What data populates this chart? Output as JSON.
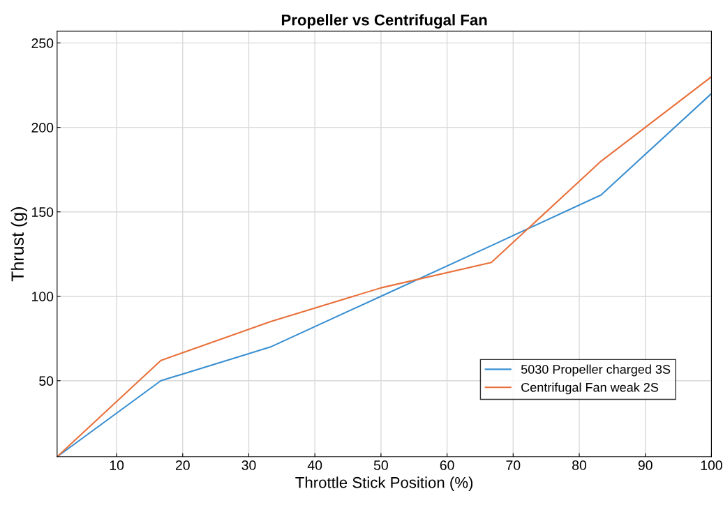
{
  "chart_data": {
    "type": "line",
    "title": "Propeller vs Centrifugal Fan",
    "xlabel": "Throttle Stick Position (%)",
    "ylabel": "Thrust (g)",
    "x": [
      1,
      16.7,
      33.3,
      50,
      66.7,
      83.3,
      100
    ],
    "series": [
      {
        "name": "5030 Propeller charged 3S",
        "color": "#3a8fd1",
        "values": [
          5,
          50,
          70,
          100,
          130,
          160,
          220
        ]
      },
      {
        "name": "Centrifugal Fan weak 2S",
        "color": "#e8703a",
        "values": [
          5,
          62,
          85,
          105,
          120,
          180,
          230
        ]
      }
    ],
    "xlim": [
      1,
      100
    ],
    "ylim": [
      5,
      257
    ],
    "xticks": [
      10,
      20,
      30,
      40,
      50,
      60,
      70,
      80,
      90,
      100
    ],
    "yticks": [
      50,
      100,
      150,
      200,
      250
    ],
    "grid": true,
    "legend": "bottom right",
    "marker": "none",
    "line_style": "solid"
  }
}
